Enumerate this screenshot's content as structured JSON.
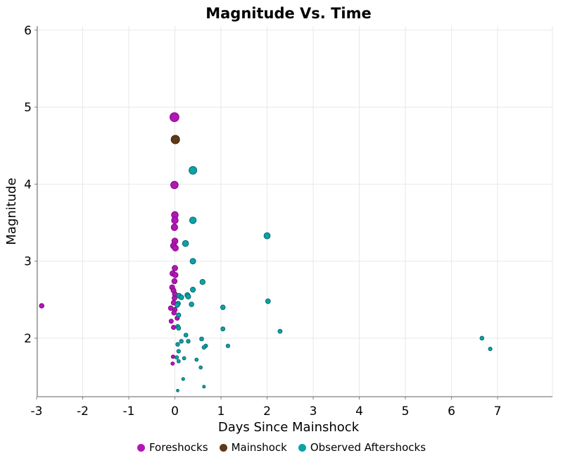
{
  "title": "Magnitude Vs. Time",
  "legend": [
    {
      "label": "Foreshocks",
      "color": "#b216b6"
    },
    {
      "label": "Mainshock",
      "color": "#5d3a18"
    },
    {
      "label": "Observed Aftershocks",
      "color": "#0aa3a8"
    }
  ],
  "colors": {
    "foreshock_fill": "#b216b6",
    "foreshock_stroke": "#7d0a82",
    "mainshock_fill": "#5d3a18",
    "mainshock_stroke": "#3a230e",
    "aftershock_fill": "#0aa3a8",
    "aftershock_stroke": "#056a6e",
    "gridline": "#e8e8e8",
    "axis_line": "#808080",
    "text": "#000000"
  },
  "chart_data": {
    "type": "scatter",
    "title": "Magnitude Vs. Time",
    "xlabel": "Days Since Mainshock",
    "ylabel": "Magnitude",
    "xlim": [
      -2.985,
      8.19
    ],
    "ylim": [
      1.24,
      6.053
    ],
    "x_ticks": [
      -3,
      -2,
      -1,
      0,
      1,
      2,
      3,
      4,
      5,
      6,
      7
    ],
    "x_tick_labels": [
      "-3",
      "-2",
      "-1",
      "0",
      "1",
      "2",
      "3",
      "4",
      "5",
      "6",
      "7"
    ],
    "y_ticks": [
      2,
      3,
      4,
      5,
      6
    ],
    "y_tick_labels": [
      "2",
      "3",
      "4",
      "5",
      "6"
    ],
    "grid": true,
    "legend_position": "bottom",
    "size_encoding": "point size scales with magnitude",
    "series": [
      {
        "name": "Foreshocks",
        "color": "#b216b6",
        "stroke": "#7d0a82",
        "points": [
          [
            -2.89,
            2.42
          ],
          [
            -0.01,
            4.87
          ],
          [
            -0.01,
            3.99
          ],
          [
            0.0,
            3.6
          ],
          [
            0.0,
            3.53
          ],
          [
            -0.01,
            3.44
          ],
          [
            0.0,
            3.26
          ],
          [
            -0.03,
            3.2
          ],
          [
            0.01,
            3.17
          ],
          [
            0.0,
            2.91
          ],
          [
            -0.05,
            2.84
          ],
          [
            0.01,
            2.82
          ],
          [
            -0.01,
            2.74
          ],
          [
            -0.06,
            2.66
          ],
          [
            -0.03,
            2.62
          ],
          [
            0.0,
            2.57
          ],
          [
            -0.01,
            2.52
          ],
          [
            -0.03,
            2.46
          ],
          [
            -0.09,
            2.39
          ],
          [
            0.0,
            2.37
          ],
          [
            -0.02,
            2.33
          ],
          [
            0.05,
            2.26
          ],
          [
            -0.08,
            2.22
          ],
          [
            -0.03,
            2.14
          ],
          [
            -0.04,
            1.76
          ],
          [
            -0.05,
            1.67
          ]
        ]
      },
      {
        "name": "Mainshock",
        "color": "#5d3a18",
        "stroke": "#3a230e",
        "points": [
          [
            0.01,
            4.58
          ]
        ]
      },
      {
        "name": "Observed Aftershocks",
        "color": "#0aa3a8",
        "stroke": "#056a6e",
        "points": [
          [
            0.39,
            4.18
          ],
          [
            0.39,
            3.53
          ],
          [
            2.0,
            3.33
          ],
          [
            0.23,
            3.23
          ],
          [
            0.39,
            3.0
          ],
          [
            0.6,
            2.73
          ],
          [
            0.39,
            2.63
          ],
          [
            0.27,
            2.56
          ],
          [
            0.09,
            2.55
          ],
          [
            0.29,
            2.54
          ],
          [
            0.14,
            2.53
          ],
          [
            2.02,
            2.48
          ],
          [
            0.07,
            2.45
          ],
          [
            0.36,
            2.44
          ],
          [
            0.05,
            2.43
          ],
          [
            1.04,
            2.4
          ],
          [
            0.08,
            2.3
          ],
          [
            0.06,
            2.15
          ],
          [
            0.08,
            2.13
          ],
          [
            1.04,
            2.12
          ],
          [
            2.28,
            2.09
          ],
          [
            0.24,
            2.04
          ],
          [
            6.66,
            2.0
          ],
          [
            0.58,
            1.99
          ],
          [
            0.29,
            1.96
          ],
          [
            0.14,
            1.96
          ],
          [
            0.06,
            1.92
          ],
          [
            1.15,
            1.9
          ],
          [
            0.67,
            1.9
          ],
          [
            0.63,
            1.88
          ],
          [
            6.84,
            1.86
          ],
          [
            0.08,
            1.83
          ],
          [
            0.04,
            1.75
          ],
          [
            0.2,
            1.74
          ],
          [
            0.47,
            1.72
          ],
          [
            0.08,
            1.7
          ],
          [
            0.56,
            1.62
          ],
          [
            0.18,
            1.47
          ],
          [
            0.63,
            1.37
          ],
          [
            0.06,
            1.32
          ]
        ]
      }
    ]
  }
}
